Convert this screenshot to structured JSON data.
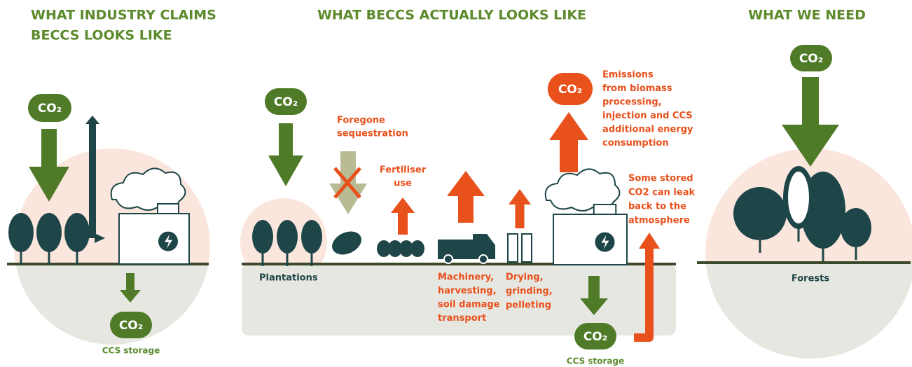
{
  "panels": [
    {
      "title": [
        "WHAT INDUSTRY CLAIMS",
        "BECCS LOOKS LIKE"
      ],
      "co2_in": "CO₂",
      "co2_stored": "CO₂",
      "storage": "CCS storage"
    },
    {
      "title": [
        "WHAT BECCS ACTUALLY LOOKS LIKE"
      ],
      "co2_in": "CO₂",
      "plantations": "Plantations",
      "foregone": [
        "Foregone",
        "sequestration"
      ],
      "fertiliser": [
        "Fertiliser",
        "use"
      ],
      "machinery": [
        "Machinery,",
        "harvesting,",
        "soil damage",
        "transport"
      ],
      "drying": [
        "Drying,",
        "grinding,",
        "pelleting"
      ],
      "co2_emitted": "CO₂",
      "emissions": [
        "Emissions",
        "from biomass",
        "processing,",
        "injection and CCS",
        "additional energy",
        "consumption"
      ],
      "leak": [
        "Some stored",
        "CO2 can leak",
        "back to the",
        "atmosphere"
      ],
      "co2_stored": "CO₂",
      "storage": "CCS storage"
    },
    {
      "title": [
        "WHAT WE NEED"
      ],
      "co2_in": "CO₂",
      "forests": "Forests"
    }
  ]
}
